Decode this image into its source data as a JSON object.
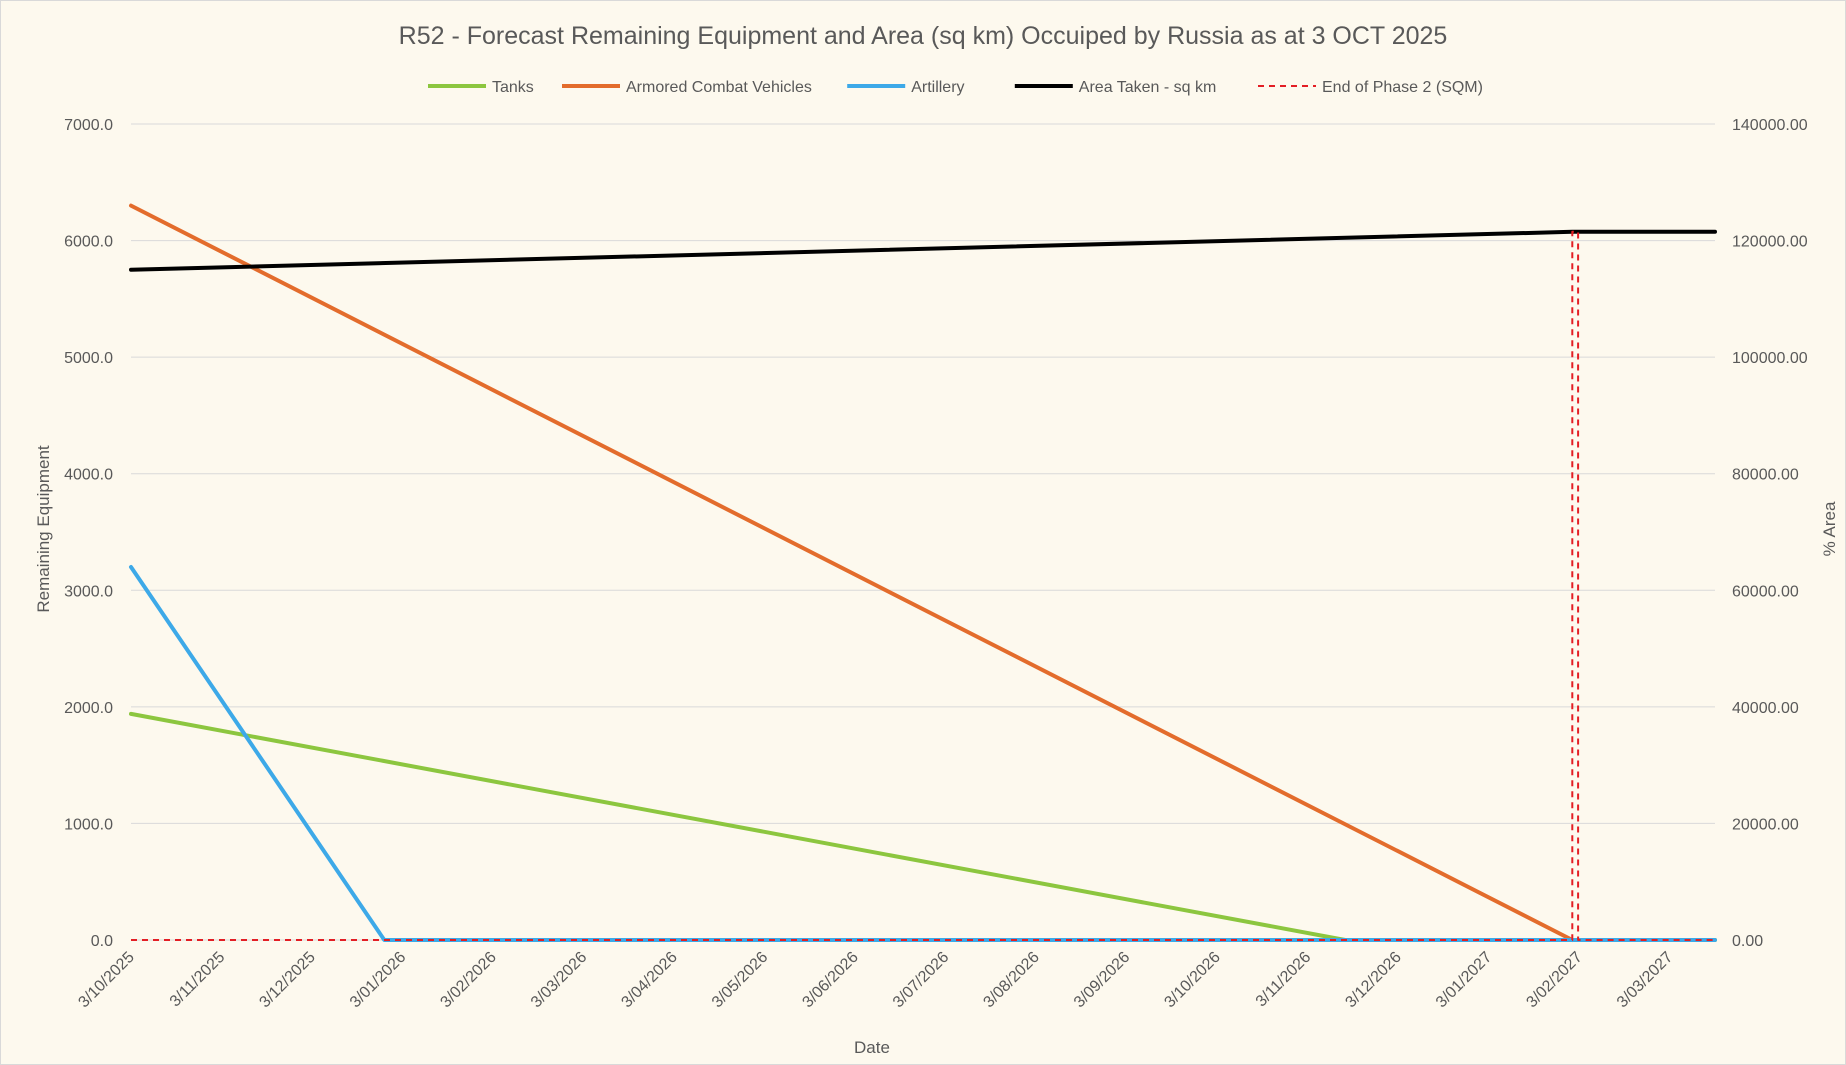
{
  "chart_data": {
    "type": "line",
    "title": "R52 - Forecast Remaining Equipment and Area (sq km) Occuiped by Russia as at 3 OCT 2025",
    "xlabel": "Date",
    "ylabel": "Remaining Equipment",
    "y2label": "% Area",
    "x_tick_labels": [
      "3/10/2025",
      "3/11/2025",
      "3/12/2025",
      "3/01/2026",
      "3/02/2026",
      "3/03/2026",
      "3/04/2026",
      "3/05/2026",
      "3/06/2026",
      "3/07/2026",
      "3/08/2026",
      "3/09/2026",
      "3/10/2026",
      "3/11/2026",
      "3/12/2026",
      "3/01/2027",
      "3/02/2027",
      "3/03/2027"
    ],
    "x_range": [
      "2025-10-03",
      "2027-03-31"
    ],
    "ylim": [
      0,
      7000
    ],
    "y_ticks": [
      "0.0",
      "1000.0",
      "2000.0",
      "3000.0",
      "4000.0",
      "5000.0",
      "6000.0",
      "7000.0"
    ],
    "y2lim": [
      0,
      140000
    ],
    "y2_ticks": [
      "0.00",
      "20000.00",
      "40000.00",
      "60000.00",
      "80000.00",
      "100000.00",
      "120000.00",
      "140000.00"
    ],
    "grid": true,
    "legend_position": "top",
    "series": [
      {
        "name": "Tanks",
        "color": "#8cc63f",
        "axis": "left",
        "points": [
          [
            "2025-10-03",
            1940
          ],
          [
            "2026-11-24",
            0
          ],
          [
            "2027-03-31",
            0
          ]
        ]
      },
      {
        "name": "Armored Combat Vehicles",
        "color": "#e36c2c",
        "axis": "left",
        "points": [
          [
            "2025-10-03",
            6300
          ],
          [
            "2027-02-10",
            0
          ]
        ]
      },
      {
        "name": "Artillery",
        "color": "#3da9e8",
        "axis": "left",
        "points": [
          [
            "2025-10-03",
            3200
          ],
          [
            "2025-12-29",
            0
          ],
          [
            "2027-03-31",
            0
          ]
        ]
      },
      {
        "name": "Area Taken - sq km",
        "color": "#000000",
        "axis": "right",
        "points": [
          [
            "2025-10-03",
            115000
          ],
          [
            "2027-02-10",
            121500
          ],
          [
            "2027-03-31",
            121500
          ]
        ]
      },
      {
        "name": "End of Phase 2 (SQM)",
        "color": "#e31e24",
        "axis": "right",
        "dashed": true,
        "points": [
          [
            "2025-10-03",
            0
          ],
          [
            "2027-02-10",
            0
          ],
          [
            "2027-02-10",
            121500
          ],
          [
            "2027-02-12",
            121500
          ],
          [
            "2027-02-12",
            0
          ],
          [
            "2027-03-31",
            0
          ]
        ]
      }
    ]
  }
}
